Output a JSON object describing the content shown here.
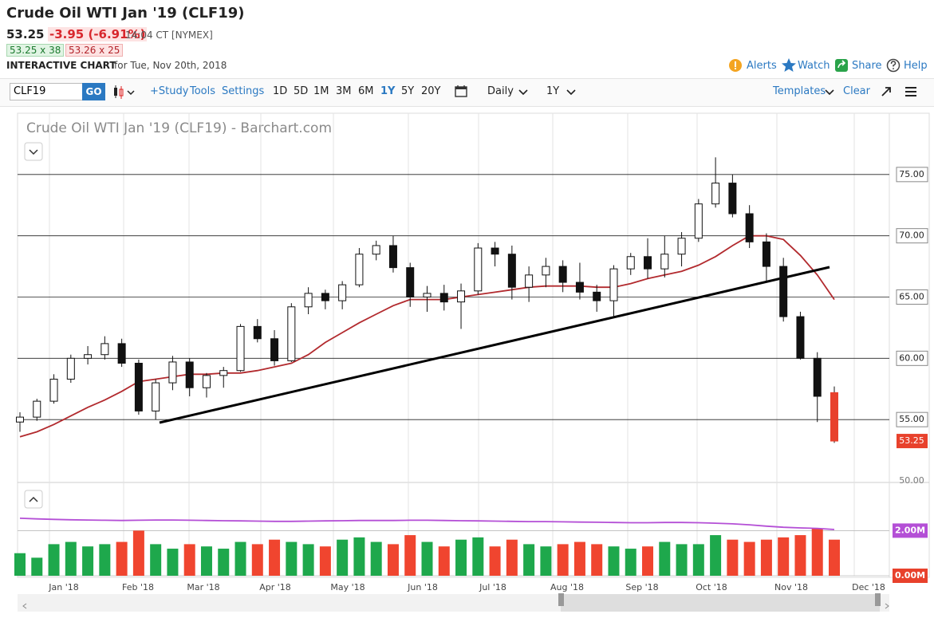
{
  "header": {
    "title": "Crude Oil WTI Jan '19 (CLF19)",
    "last": "53.25",
    "change": "-3.95 (-6.91%)",
    "time": "14:04 CT [NYMEX]",
    "bid": "53.25 x 38",
    "ask": "53.26 x 25",
    "chart_label": "INTERACTIVE CHART",
    "date": "for Tue, Nov 20th, 2018",
    "links": [
      "Alerts",
      "Watch",
      "Share",
      "Help"
    ]
  },
  "toolbar": {
    "symbol": "CLF19",
    "go": "GO",
    "tools": [
      "+Study",
      "Tools",
      "Settings"
    ],
    "periods": [
      "1D",
      "5D",
      "1M",
      "3M",
      "6M",
      "1Y",
      "5Y",
      "20Y"
    ],
    "interval": "Daily",
    "range": "1Y",
    "templates": "Templates",
    "clear": "Clear"
  },
  "chart_data": {
    "type": "candlestick",
    "title": "Crude Oil WTI Jan '19 (CLF19) - Barchart.com",
    "x_labels": [
      "Jan '18",
      "Feb '18",
      "Mar '18",
      "Apr '18",
      "May '18",
      "Jun '18",
      "Jul '18",
      "Aug '18",
      "Sep '18",
      "Oct '18",
      "Nov '18",
      "Dec '18"
    ],
    "open": [
      54.8,
      55.2,
      56.5,
      58.3,
      60.0,
      60.3,
      61.2,
      59.6,
      55.7,
      58.0,
      59.7,
      57.6,
      58.6,
      59.0,
      62.6,
      61.6,
      59.8,
      64.2,
      65.3,
      64.7,
      66.0,
      68.5,
      69.2,
      67.4,
      65.0,
      65.3,
      64.6,
      65.5,
      69.0,
      68.5,
      65.8,
      66.8,
      67.5,
      66.2,
      65.4,
      64.7,
      67.3,
      68.3,
      67.3,
      68.5,
      69.8,
      72.6,
      74.3,
      71.8,
      69.5,
      67.5,
      63.4,
      60.0,
      57.2
    ],
    "high": [
      55.6,
      56.7,
      58.7,
      60.3,
      61.0,
      61.8,
      61.6,
      59.9,
      58.3,
      60.2,
      60.0,
      58.8,
      59.3,
      62.8,
      63.2,
      62.3,
      64.5,
      65.8,
      65.6,
      66.3,
      69.0,
      69.6,
      70.0,
      67.8,
      65.9,
      66.0,
      66.1,
      69.4,
      69.5,
      69.2,
      67.5,
      68.2,
      68.0,
      67.8,
      66.0,
      67.6,
      68.6,
      69.8,
      70.0,
      70.3,
      73.0,
      76.4,
      75.0,
      72.5,
      70.2,
      68.2,
      63.8,
      60.5,
      57.7
    ],
    "low": [
      54.0,
      54.9,
      56.3,
      58.0,
      59.5,
      59.9,
      59.3,
      55.4,
      55.0,
      57.4,
      56.9,
      56.8,
      57.6,
      58.9,
      61.3,
      59.4,
      59.7,
      63.6,
      64.0,
      64.0,
      65.8,
      68.0,
      67.0,
      64.2,
      63.8,
      63.9,
      62.4,
      65.2,
      67.5,
      64.8,
      64.6,
      65.8,
      65.4,
      64.8,
      63.8,
      63.4,
      66.8,
      66.5,
      66.6,
      67.5,
      69.5,
      72.3,
      71.5,
      69.0,
      66.3,
      63.0,
      59.9,
      54.8,
      53.1
    ],
    "close": [
      55.2,
      56.5,
      58.3,
      60.0,
      60.3,
      61.2,
      59.6,
      55.7,
      58.0,
      59.7,
      57.6,
      58.6,
      59.0,
      62.6,
      61.6,
      59.8,
      64.2,
      65.3,
      64.7,
      66.0,
      68.5,
      69.2,
      67.4,
      65.0,
      65.3,
      64.6,
      65.5,
      69.0,
      68.5,
      65.8,
      66.8,
      67.5,
      66.2,
      65.4,
      64.7,
      67.3,
      68.3,
      67.3,
      68.5,
      69.8,
      72.6,
      74.3,
      71.8,
      69.5,
      67.5,
      63.4,
      60.0,
      56.9,
      53.25
    ],
    "up_color": "#ffffff",
    "down_color": "#111111",
    "last_color": "#e8412c",
    "moving_average": {
      "color": "#b22a2e",
      "values": [
        53.6,
        54.0,
        54.6,
        55.3,
        56.0,
        56.6,
        57.3,
        58.1,
        58.3,
        58.5,
        58.7,
        58.7,
        58.8,
        58.8,
        59.0,
        59.3,
        59.6,
        60.3,
        61.3,
        62.1,
        62.9,
        63.6,
        64.3,
        64.8,
        64.8,
        64.8,
        65.0,
        65.2,
        65.4,
        65.6,
        65.8,
        65.9,
        65.9,
        65.9,
        65.8,
        65.8,
        66.1,
        66.5,
        66.8,
        67.1,
        67.6,
        68.3,
        69.2,
        70.0,
        70.0,
        69.7,
        68.4,
        66.8,
        64.8
      ]
    },
    "trend_line": {
      "color": "#000000",
      "values": [
        54.75,
        67.44
      ]
    },
    "ylim": [
      50,
      80
    ],
    "yticks": [
      {
        "value": 50,
        "label": "50.00"
      },
      {
        "value": 55,
        "label": "55.00"
      },
      {
        "value": 60,
        "label": "60.00"
      },
      {
        "value": 65,
        "label": "65.00"
      },
      {
        "value": 70,
        "label": "70.00"
      },
      {
        "value": 75,
        "label": "75.00"
      }
    ],
    "grid": true,
    "volume": {
      "values": [
        1.0,
        0.8,
        1.4,
        1.5,
        1.3,
        1.4,
        1.5,
        2.0,
        1.4,
        1.2,
        1.4,
        1.3,
        1.2,
        1.5,
        1.4,
        1.6,
        1.5,
        1.4,
        1.3,
        1.6,
        1.7,
        1.5,
        1.4,
        1.8,
        1.5,
        1.3,
        1.6,
        1.7,
        1.3,
        1.6,
        1.4,
        1.3,
        1.4,
        1.5,
        1.4,
        1.3,
        1.2,
        1.3,
        1.5,
        1.4,
        1.4,
        1.8,
        1.6,
        1.5,
        1.6,
        1.7,
        1.8,
        2.1,
        1.6
      ],
      "up_color": "#1ea84c",
      "down_color": "#f0452f",
      "average": {
        "color": "#b44fd6",
        "values": [
          2.55,
          2.52,
          2.5,
          2.48,
          2.47,
          2.46,
          2.45,
          2.46,
          2.47,
          2.47,
          2.46,
          2.45,
          2.44,
          2.43,
          2.42,
          2.41,
          2.41,
          2.42,
          2.43,
          2.44,
          2.45,
          2.45,
          2.45,
          2.46,
          2.46,
          2.45,
          2.44,
          2.43,
          2.42,
          2.41,
          2.4,
          2.4,
          2.39,
          2.38,
          2.37,
          2.36,
          2.35,
          2.35,
          2.36,
          2.36,
          2.35,
          2.33,
          2.3,
          2.26,
          2.2,
          2.15,
          2.12,
          2.1,
          2.05
        ]
      },
      "ylim": [
        0,
        4.1
      ],
      "yticks": [
        {
          "value": 0,
          "label": "0.00M"
        },
        {
          "value": 2,
          "label": "2.00M"
        }
      ]
    }
  }
}
